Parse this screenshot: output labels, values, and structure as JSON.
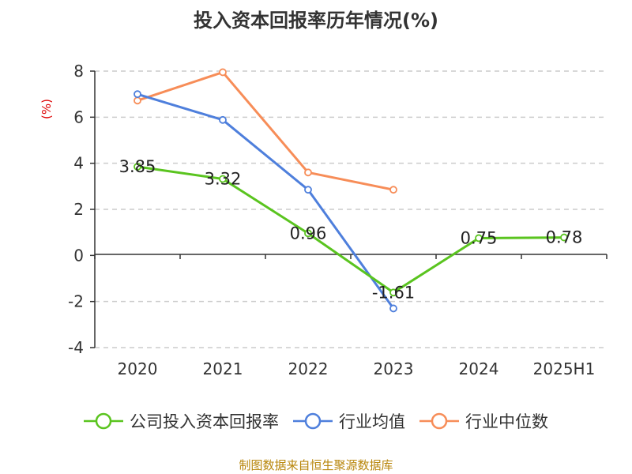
{
  "chart_data": {
    "type": "line",
    "title": "投入资本回报率历年情况(%)",
    "ylabel": "(%)",
    "categories": [
      "2020",
      "2021",
      "2022",
      "2023",
      "2024",
      "2025H1"
    ],
    "ylim": [
      -4,
      8
    ],
    "yticks": [
      -4,
      -2,
      0,
      2,
      4,
      6,
      8
    ],
    "grid": true,
    "legend_position": "bottom",
    "series": [
      {
        "name": "公司投入资本回报率",
        "color": "#5ac41f",
        "values": [
          3.85,
          3.32,
          0.96,
          -1.61,
          0.75,
          0.78
        ],
        "labels": [
          "3.85",
          "3.32",
          "0.96",
          "-1.61",
          "0.75",
          "0.78"
        ]
      },
      {
        "name": "行业均值",
        "color": "#4e7fdc",
        "values": [
          7.0,
          5.88,
          2.85,
          -2.3,
          null,
          null
        ]
      },
      {
        "name": "行业中位数",
        "color": "#f78d58",
        "values": [
          6.72,
          7.95,
          3.6,
          2.85,
          null,
          null
        ]
      }
    ]
  },
  "source": "制图数据来自恒生聚源数据库"
}
